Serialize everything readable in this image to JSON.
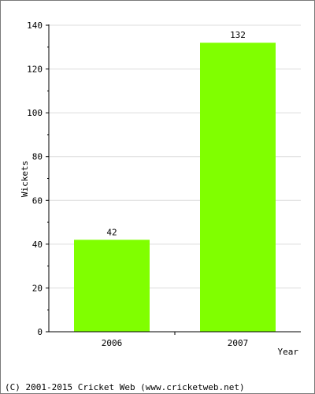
{
  "chart_data": {
    "type": "bar",
    "title": "",
    "categories": [
      "2006",
      "2007"
    ],
    "values": [
      42,
      132
    ],
    "data_labels": [
      "42",
      "132"
    ],
    "xlabel": "Year",
    "ylabel": "Wickets",
    "ylim": [
      0,
      140
    ],
    "yticks": [
      0,
      20,
      40,
      60,
      80,
      100,
      120,
      140
    ],
    "grid": true,
    "legend": "none",
    "bar_color": "#80ff00",
    "grid_color": "#dcdcdc"
  },
  "footer": {
    "copyright": "(C) 2001-2015 Cricket Web (www.cricketweb.net)"
  }
}
